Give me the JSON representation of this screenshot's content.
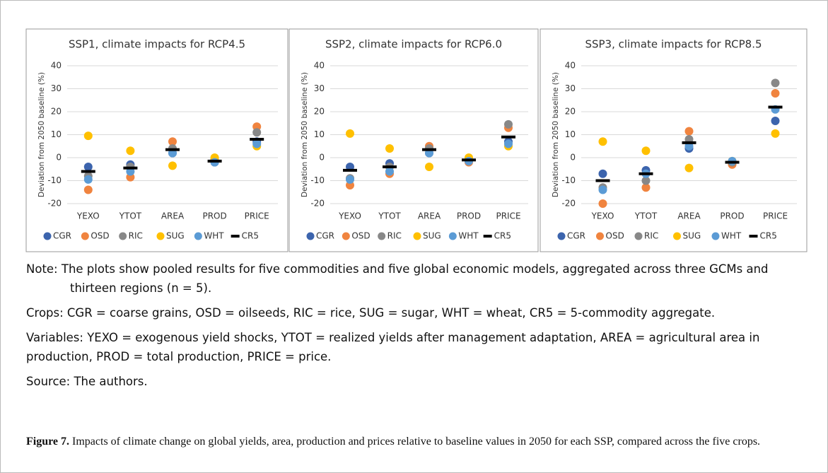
{
  "chart_data": [
    {
      "type": "dot",
      "title": "SSP1, climate impacts for RCP4.5",
      "y_label": "Deviation from 2050 baseline (%)",
      "categories": [
        "YEXO",
        "YTOT",
        "AREA",
        "PROD",
        "PRICE"
      ],
      "series": [
        {
          "name": "CGR",
          "color": "#3c64ad",
          "marker": "circle",
          "values": [
            -4,
            -3,
            2,
            -2,
            7
          ]
        },
        {
          "name": "OSD",
          "color": "#f0843f",
          "marker": "circle",
          "values": [
            -14,
            -8.5,
            7,
            -1,
            13.5
          ]
        },
        {
          "name": "RIC",
          "color": "#888888",
          "marker": "circle",
          "values": [
            -8,
            -4,
            4,
            -1,
            11
          ]
        },
        {
          "name": "SUG",
          "color": "#ffc000",
          "marker": "circle",
          "values": [
            9.5,
            3,
            -3.5,
            0,
            5
          ]
        },
        {
          "name": "WHT",
          "color": "#5b9bd5",
          "marker": "circle",
          "values": [
            -9.5,
            -6,
            2,
            -2,
            6
          ]
        },
        {
          "name": "CR5",
          "color": "#000000",
          "marker": "dash",
          "values": [
            -6,
            -4.5,
            3.5,
            -1.5,
            8
          ]
        }
      ],
      "ylim": [
        -20,
        40
      ],
      "yticks": [
        -20,
        -10,
        0,
        10,
        20,
        30,
        40
      ],
      "grid": true,
      "legend": "bottom"
    },
    {
      "type": "dot",
      "title": "SSP2, climate impacts for RCP6.0",
      "y_label": "Deviation from 2050 baseline (%)",
      "categories": [
        "YEXO",
        "YTOT",
        "AREA",
        "PROD",
        "PRICE"
      ],
      "series": [
        {
          "name": "CGR",
          "color": "#3c64ad",
          "marker": "circle",
          "values": [
            -4,
            -2.5,
            2,
            -1.5,
            7
          ]
        },
        {
          "name": "OSD",
          "color": "#f0843f",
          "marker": "circle",
          "values": [
            -12,
            -7,
            5,
            -2,
            13
          ]
        },
        {
          "name": "RIC",
          "color": "#888888",
          "marker": "circle",
          "values": [
            -9,
            -4,
            4,
            -1,
            14.5
          ]
        },
        {
          "name": "SUG",
          "color": "#ffc000",
          "marker": "circle",
          "values": [
            10.5,
            4,
            -4,
            0,
            5
          ]
        },
        {
          "name": "WHT",
          "color": "#5b9bd5",
          "marker": "circle",
          "values": [
            -9.5,
            -6,
            2,
            -1.5,
            6
          ]
        },
        {
          "name": "CR5",
          "color": "#000000",
          "marker": "dash",
          "values": [
            -5.5,
            -4,
            3.5,
            -1,
            9
          ]
        }
      ],
      "ylim": [
        -20,
        40
      ],
      "yticks": [
        -20,
        -10,
        0,
        10,
        20,
        30,
        40
      ],
      "grid": true,
      "legend": "bottom"
    },
    {
      "type": "dot",
      "title": "SSP3, climate impacts for RCP8.5",
      "y_label": "Deviation from 2050 baseline (%)",
      "categories": [
        "YEXO",
        "YTOT",
        "AREA",
        "PROD",
        "PRICE"
      ],
      "series": [
        {
          "name": "CGR",
          "color": "#3c64ad",
          "marker": "circle",
          "values": [
            -7,
            -5.5,
            4,
            -2,
            16
          ]
        },
        {
          "name": "OSD",
          "color": "#f0843f",
          "marker": "circle",
          "values": [
            -20,
            -13,
            11.5,
            -3,
            28
          ]
        },
        {
          "name": "RIC",
          "color": "#888888",
          "marker": "circle",
          "values": [
            -13,
            -10,
            8,
            -2,
            32.5
          ]
        },
        {
          "name": "SUG",
          "color": "#ffc000",
          "marker": "circle",
          "values": [
            7,
            3,
            -4.5,
            -1.5,
            10.5
          ]
        },
        {
          "name": "WHT",
          "color": "#5b9bd5",
          "marker": "circle",
          "values": [
            -14,
            -7,
            5,
            -1.5,
            21
          ]
        },
        {
          "name": "CR5",
          "color": "#000000",
          "marker": "dash",
          "values": [
            -10,
            -7,
            6.5,
            -2,
            22
          ]
        }
      ],
      "ylim": [
        -20,
        40
      ],
      "yticks": [
        -20,
        -10,
        0,
        10,
        20,
        30,
        40
      ],
      "grid": true,
      "legend": "bottom"
    }
  ],
  "notes": [
    "Note: The plots show pooled results for five commodities and five global economic models, aggregated across three GCMs and thirteen regions (n = 5).",
    "Crops: CGR = coarse grains, OSD = oilseeds, RIC = rice, SUG = sugar, WHT = wheat, CR5 = 5-commodity aggregate.",
    "Variables: YEXO = exogenous yield shocks, YTOT = realized yields after management adaptation, AREA = agricultural area in production, PROD = total production, PRICE = price.",
    "Source: The authors."
  ],
  "caption": {
    "label": "Figure 7.",
    "text": "Impacts of climate change on global yields, area, production and prices relative to baseline values in 2050 for each SSP, compared across the five crops."
  }
}
